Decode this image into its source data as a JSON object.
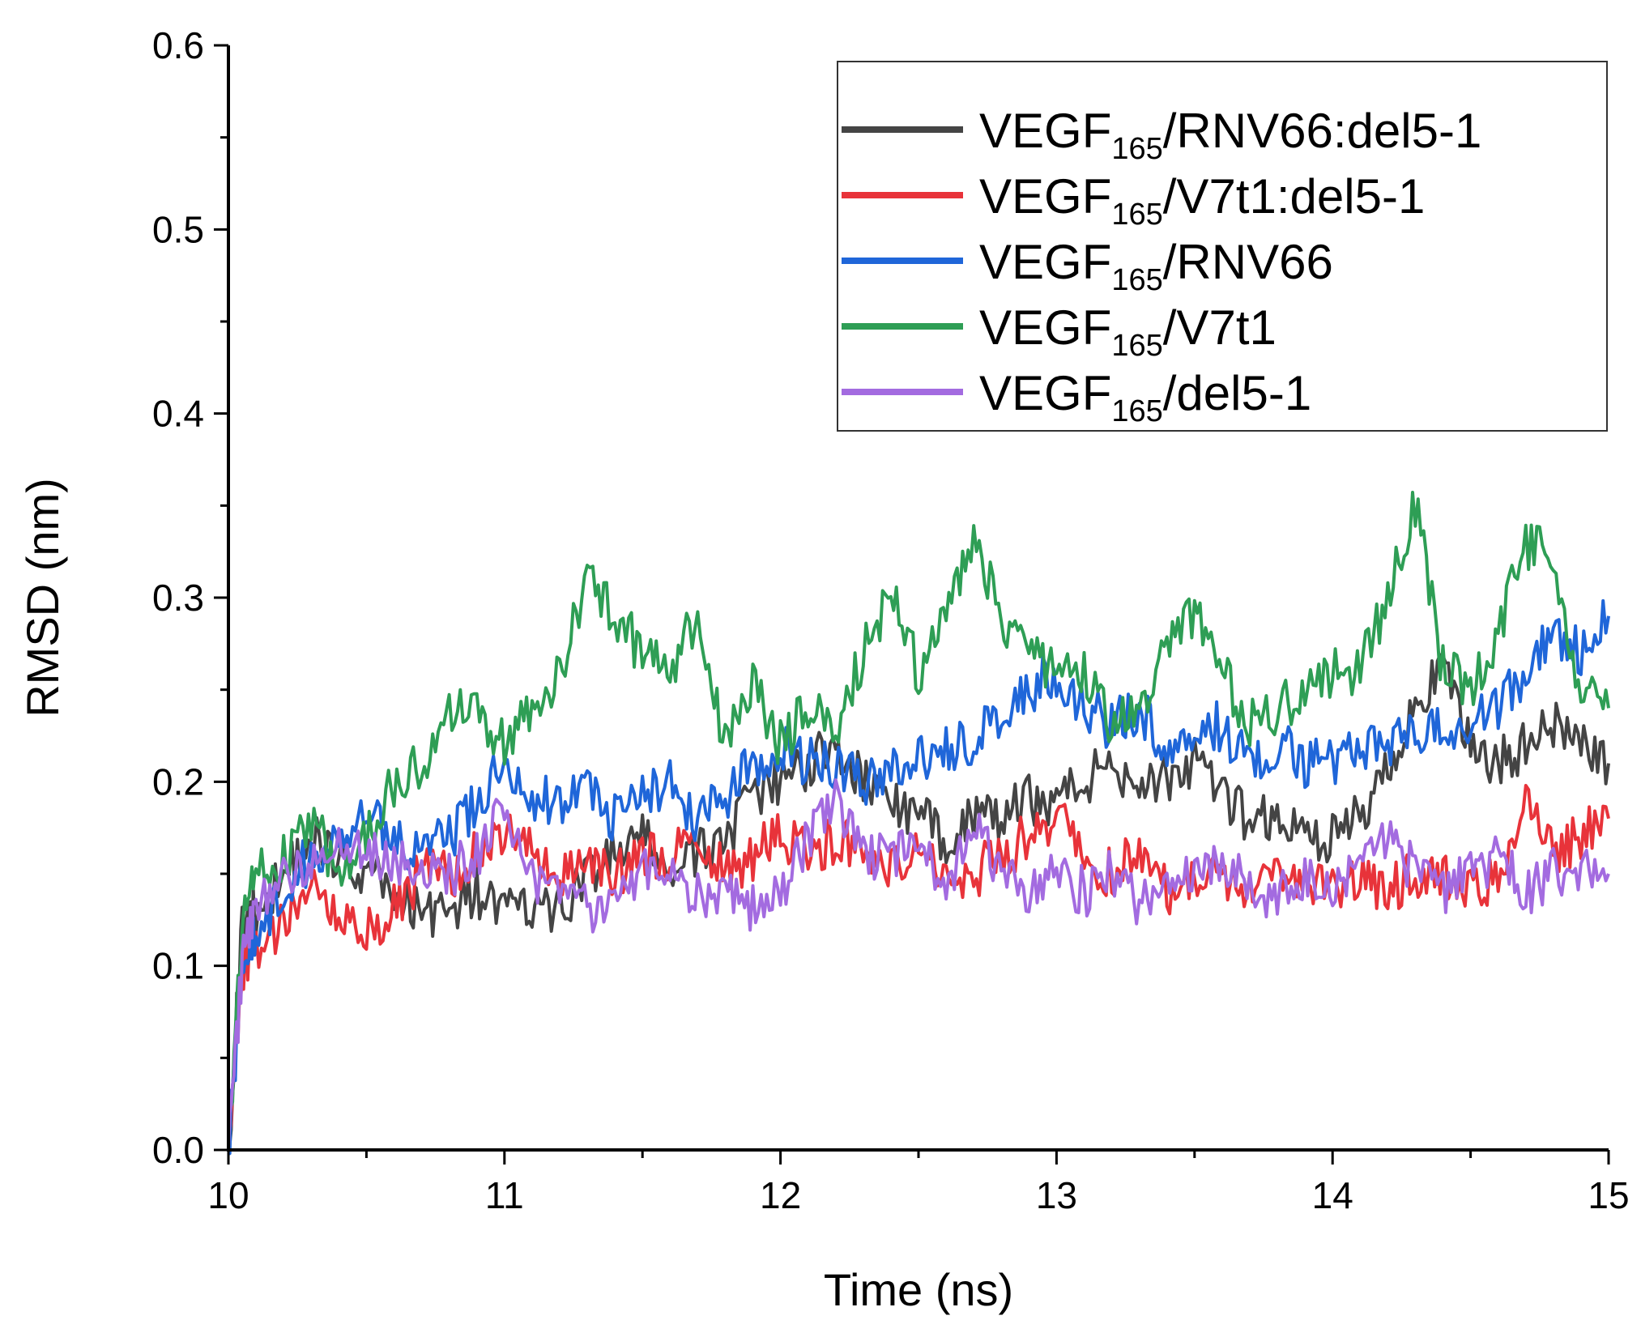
{
  "chart_data": {
    "type": "line",
    "title": "",
    "xlabel": "Time (ns)",
    "ylabel": "RMSD (nm)",
    "xlim": [
      10,
      15
    ],
    "ylim": [
      0.0,
      0.6
    ],
    "x_ticks": [
      "10",
      "11",
      "12",
      "13",
      "14",
      "15"
    ],
    "y_ticks": [
      "0.0",
      "0.1",
      "0.2",
      "0.3",
      "0.4",
      "0.5",
      "0.6"
    ],
    "legend_position": "top-right",
    "x": [
      10.0,
      10.05,
      10.1,
      10.2,
      10.3,
      10.4,
      10.5,
      10.6,
      10.7,
      10.8,
      10.9,
      11.0,
      11.1,
      11.2,
      11.3,
      11.4,
      11.5,
      11.6,
      11.7,
      11.8,
      11.9,
      12.0,
      12.1,
      12.2,
      12.3,
      12.4,
      12.5,
      12.6,
      12.7,
      12.8,
      12.9,
      13.0,
      13.1,
      13.2,
      13.3,
      13.4,
      13.5,
      13.6,
      13.7,
      13.8,
      13.9,
      14.0,
      14.1,
      14.2,
      14.3,
      14.4,
      14.5,
      14.6,
      14.7,
      14.8,
      14.9,
      15.0
    ],
    "series": [
      {
        "name": "VEGF165/RNV66:del5-1",
        "label_main": "VEGF",
        "label_sub": "165",
        "label_rest": "/RNV66:del5-1",
        "color": "#444444",
        "values": [
          0.0,
          0.12,
          0.13,
          0.15,
          0.17,
          0.16,
          0.15,
          0.14,
          0.13,
          0.13,
          0.14,
          0.13,
          0.13,
          0.13,
          0.15,
          0.16,
          0.17,
          0.15,
          0.16,
          0.17,
          0.19,
          0.2,
          0.21,
          0.22,
          0.2,
          0.19,
          0.18,
          0.17,
          0.18,
          0.18,
          0.19,
          0.19,
          0.2,
          0.21,
          0.2,
          0.2,
          0.21,
          0.19,
          0.18,
          0.18,
          0.17,
          0.17,
          0.18,
          0.21,
          0.24,
          0.26,
          0.22,
          0.21,
          0.22,
          0.23,
          0.22,
          0.21
        ]
      },
      {
        "name": "VEGF165/V7t1:del5-1",
        "label_main": "VEGF",
        "label_sub": "165",
        "label_rest": "/V7t1:del5-1",
        "color": "#e8333a",
        "values": [
          0.0,
          0.1,
          0.11,
          0.12,
          0.14,
          0.13,
          0.12,
          0.13,
          0.15,
          0.15,
          0.16,
          0.17,
          0.16,
          0.15,
          0.16,
          0.15,
          0.16,
          0.16,
          0.17,
          0.15,
          0.16,
          0.17,
          0.16,
          0.17,
          0.16,
          0.15,
          0.16,
          0.15,
          0.15,
          0.16,
          0.17,
          0.18,
          0.16,
          0.15,
          0.16,
          0.14,
          0.15,
          0.15,
          0.14,
          0.15,
          0.15,
          0.14,
          0.15,
          0.14,
          0.15,
          0.15,
          0.14,
          0.15,
          0.19,
          0.16,
          0.17,
          0.18
        ]
      },
      {
        "name": "VEGF165/RNV66",
        "label_main": "VEGF",
        "label_sub": "165",
        "label_rest": "/RNV66",
        "color": "#1f66d9",
        "values": [
          0.0,
          0.1,
          0.12,
          0.14,
          0.16,
          0.17,
          0.18,
          0.17,
          0.16,
          0.17,
          0.19,
          0.21,
          0.19,
          0.19,
          0.2,
          0.18,
          0.19,
          0.2,
          0.18,
          0.19,
          0.21,
          0.22,
          0.21,
          0.21,
          0.2,
          0.21,
          0.21,
          0.22,
          0.22,
          0.24,
          0.25,
          0.26,
          0.24,
          0.23,
          0.24,
          0.22,
          0.23,
          0.23,
          0.21,
          0.22,
          0.21,
          0.21,
          0.22,
          0.22,
          0.23,
          0.23,
          0.23,
          0.24,
          0.26,
          0.28,
          0.27,
          0.29
        ]
      },
      {
        "name": "VEGF165/V7t1",
        "label_main": "VEGF",
        "label_sub": "165",
        "label_rest": "/V7t1",
        "color": "#2e9e55",
        "values": [
          0.0,
          0.12,
          0.15,
          0.16,
          0.18,
          0.15,
          0.17,
          0.2,
          0.21,
          0.24,
          0.24,
          0.22,
          0.24,
          0.26,
          0.31,
          0.29,
          0.27,
          0.26,
          0.29,
          0.22,
          0.25,
          0.22,
          0.24,
          0.23,
          0.27,
          0.3,
          0.26,
          0.3,
          0.33,
          0.29,
          0.27,
          0.26,
          0.26,
          0.23,
          0.24,
          0.27,
          0.29,
          0.26,
          0.23,
          0.24,
          0.25,
          0.26,
          0.26,
          0.3,
          0.35,
          0.26,
          0.25,
          0.28,
          0.33,
          0.32,
          0.25,
          0.24
        ]
      },
      {
        "name": "VEGF165/del5-1",
        "label_main": "VEGF",
        "label_sub": "165",
        "label_rest": "/del5-1",
        "color": "#a36be0",
        "values": [
          0.0,
          0.1,
          0.13,
          0.15,
          0.16,
          0.17,
          0.16,
          0.16,
          0.15,
          0.15,
          0.16,
          0.19,
          0.15,
          0.14,
          0.13,
          0.14,
          0.15,
          0.15,
          0.14,
          0.14,
          0.13,
          0.14,
          0.17,
          0.19,
          0.16,
          0.16,
          0.17,
          0.14,
          0.18,
          0.15,
          0.14,
          0.15,
          0.14,
          0.15,
          0.13,
          0.15,
          0.15,
          0.16,
          0.14,
          0.14,
          0.15,
          0.14,
          0.15,
          0.17,
          0.15,
          0.14,
          0.15,
          0.16,
          0.14,
          0.15,
          0.15,
          0.15
        ]
      }
    ]
  }
}
